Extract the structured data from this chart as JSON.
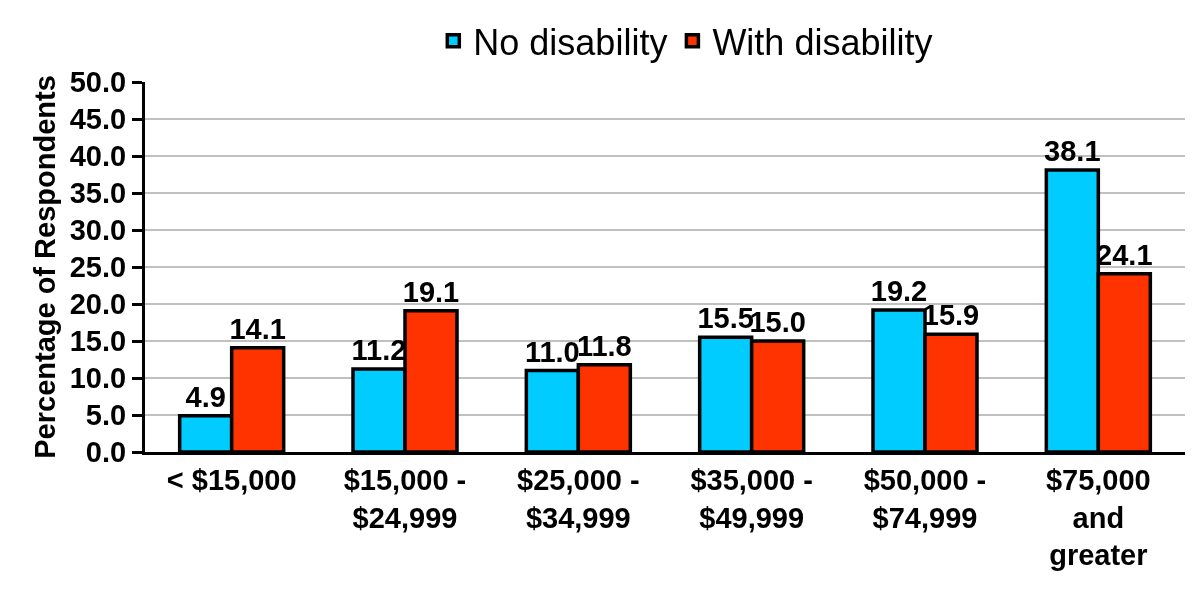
{
  "chart_data": {
    "type": "bar",
    "ylabel": "Percentage of Respondents",
    "categories": [
      "< $15,000",
      "$15,000 - $24,999",
      "$25,000 - $34,999",
      "$35,000 - $49,999",
      "$50,000 - $74,999",
      "$75,000 and greater"
    ],
    "series": [
      {
        "name": "No disability",
        "color": "#00ccff",
        "values": [
          4.9,
          11.2,
          11.0,
          15.5,
          19.2,
          38.1
        ],
        "value_labels": [
          "4.9",
          "11.2",
          "11.0",
          "15.5",
          "19.2",
          "38.1"
        ]
      },
      {
        "name": "With disability",
        "color": "#ff3300",
        "values": [
          14.1,
          19.1,
          11.8,
          15.0,
          15.9,
          24.1
        ],
        "value_labels": [
          "14.1",
          "19.1",
          "11.8",
          "15.0",
          "15.9",
          "24.1"
        ]
      }
    ],
    "ylim": [
      0,
      50
    ],
    "yticks": [
      {
        "value": 0,
        "label": "0.0"
      },
      {
        "value": 5,
        "label": "5.0"
      },
      {
        "value": 10,
        "label": "10.0"
      },
      {
        "value": 15,
        "label": "15.0"
      },
      {
        "value": 20,
        "label": "20.0"
      },
      {
        "value": 25,
        "label": "25.0"
      },
      {
        "value": 30,
        "label": "30.0"
      },
      {
        "value": 35,
        "label": "35.0"
      },
      {
        "value": 40,
        "label": "40.0"
      },
      {
        "value": 45,
        "label": "45.0"
      },
      {
        "value": 50,
        "label": "50.0"
      }
    ],
    "grid": "y",
    "legend": "top"
  }
}
